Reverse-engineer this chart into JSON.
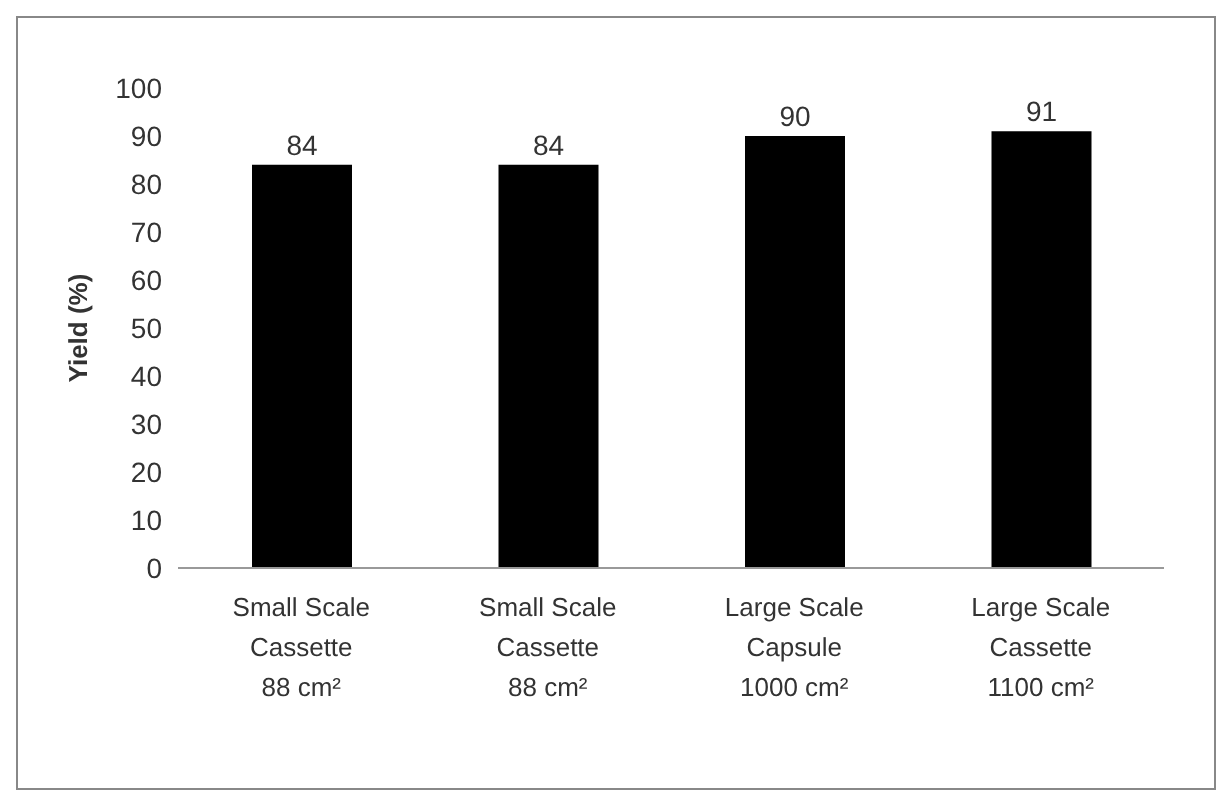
{
  "chart_data": {
    "type": "bar",
    "ylabel": "Yield (%)",
    "categories": [
      "Small Scale\nCassette\n88 cm²",
      "Small Scale\nCassette\n88 cm²",
      "Large Scale\nCapsule\n1000 cm²",
      "Large Scale\nCassette\n1100 cm²"
    ],
    "values": [
      84,
      84,
      90,
      91
    ],
    "color": "#000000",
    "data_labels": true,
    "ylim": [
      0,
      100
    ],
    "yticks": [
      0,
      10,
      20,
      30,
      40,
      50,
      60,
      70,
      80,
      90,
      100
    ],
    "grid": false,
    "legend": false
  }
}
